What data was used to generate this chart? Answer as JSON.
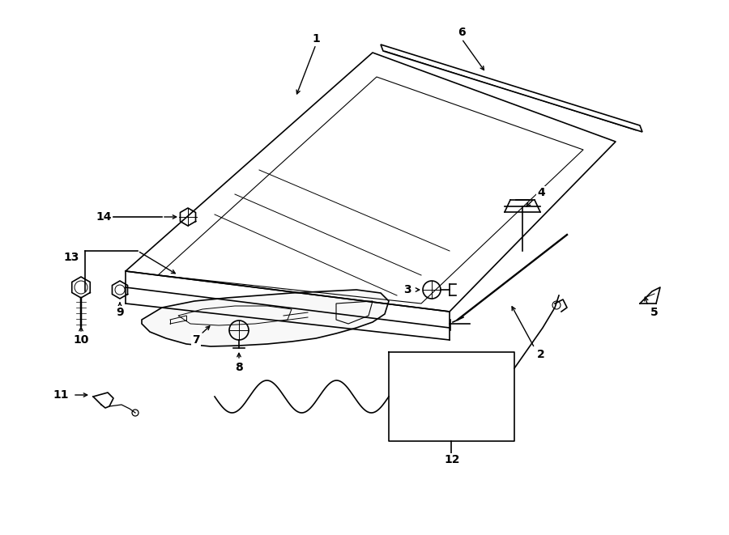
{
  "background_color": "#ffffff",
  "line_color": "#000000",
  "fig_width": 9.0,
  "fig_height": 6.61,
  "dpi": 100
}
